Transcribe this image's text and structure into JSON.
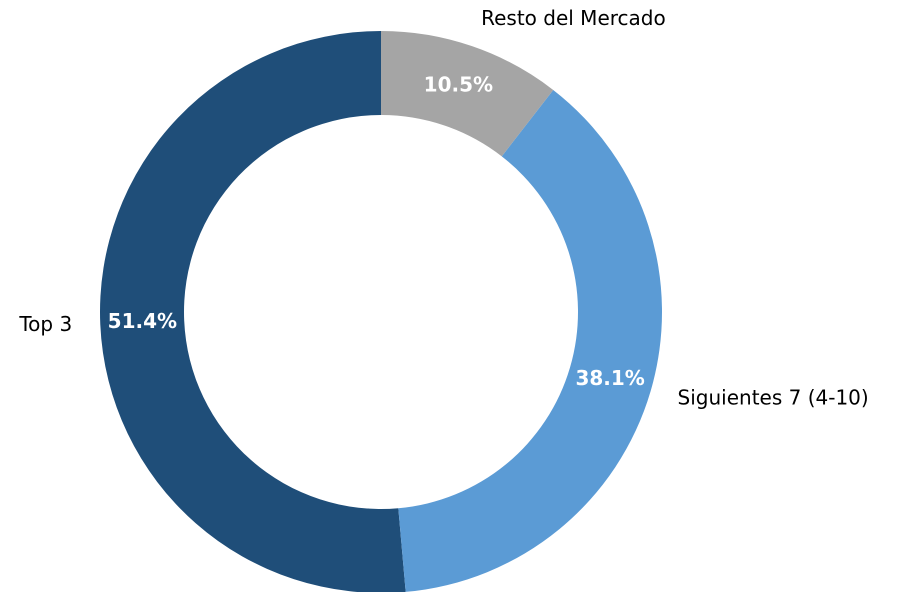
{
  "chart_data": {
    "type": "donut",
    "categories": [
      "Top 3",
      "Siguientes 7 (4-10)",
      "Resto del Mercado"
    ],
    "values": [
      51.4,
      38.1,
      10.5
    ],
    "value_labels": [
      "51.4%",
      "38.1%",
      "10.5%"
    ],
    "colors": [
      "#1f4e79",
      "#5b9bd5",
      "#a5a5a5"
    ]
  }
}
